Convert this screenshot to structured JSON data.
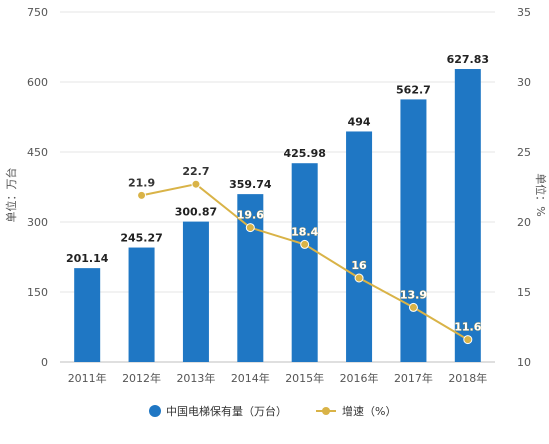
{
  "chart_data": {
    "type": "bar",
    "title": "",
    "categories": [
      "2011年",
      "2012年",
      "2013年",
      "2014年",
      "2015年",
      "2016年",
      "2017年",
      "2018年"
    ],
    "series": [
      {
        "name": "中国电梯保有量（万台）",
        "type": "bar",
        "axis": "left",
        "color": "#1f77c4",
        "values": [
          201.14,
          245.27,
          300.87,
          359.74,
          425.98,
          494,
          562.7,
          627.83
        ],
        "labels": [
          "201.14",
          "245.27",
          "300.87",
          "359.74",
          "425.98",
          "494",
          "562.7",
          "627.83"
        ]
      },
      {
        "name": "增速（%）",
        "type": "line",
        "axis": "right",
        "color": "#d9b347",
        "values": [
          null,
          21.9,
          22.7,
          19.6,
          18.4,
          16,
          13.9,
          11.6
        ],
        "labels": [
          "",
          "21.9",
          "22.7",
          "19.6",
          "18.4",
          "16",
          "13.9",
          "11.6"
        ]
      }
    ],
    "y_left": {
      "label": "单位：万台",
      "ticks": [
        "750",
        "600",
        "450",
        "300",
        "150",
        "0"
      ],
      "min": 0,
      "max": 750
    },
    "y_right": {
      "label": "单位：%",
      "ticks": [
        "35",
        "30",
        "25",
        "20",
        "15",
        "10"
      ],
      "min": 10,
      "max": 35
    },
    "grid": true,
    "legend": "bottom"
  }
}
